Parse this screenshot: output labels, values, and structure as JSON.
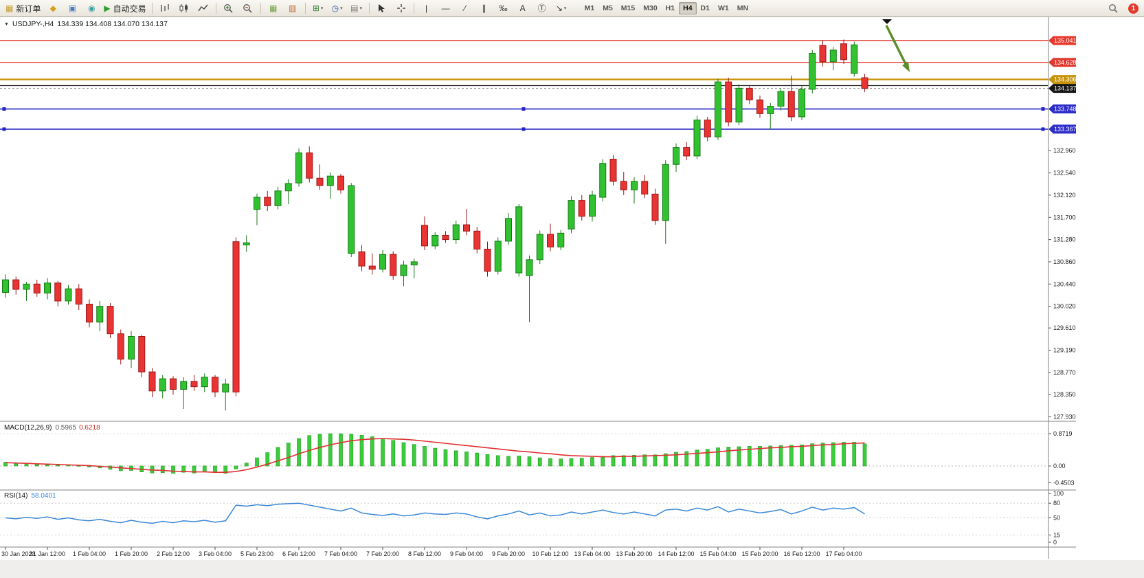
{
  "toolbar": {
    "notification_count": "1",
    "tools": [
      {
        "type": "button",
        "name": "new-order-button",
        "glyph": "▦",
        "color": "#c59b2d",
        "label": "新订单"
      },
      {
        "type": "button",
        "name": "profiles-icon-button",
        "glyph": "◆",
        "color": "#d4a017"
      },
      {
        "type": "button",
        "name": "charts-icon-button",
        "glyph": "▣",
        "color": "#4a7dbd"
      },
      {
        "type": "button",
        "name": "globe-icon-button",
        "glyph": "◉",
        "color": "#3fa0a0"
      },
      {
        "type": "button",
        "name": "autotrading-button",
        "glyph": "▶",
        "color": "#2e9b2e",
        "label": "自动交易"
      },
      {
        "type": "divider"
      },
      {
        "type": "button",
        "name": "bar-chart-type-button",
        "svg": "bars"
      },
      {
        "type": "button",
        "name": "candlestick-type-button",
        "svg": "candles"
      },
      {
        "type": "button",
        "name": "line-chart-type-button",
        "svg": "line"
      },
      {
        "type": "divider"
      },
      {
        "type": "button",
        "name": "zoom-in-button",
        "svg": "zoomin"
      },
      {
        "type": "button",
        "name": "zoom-out-button",
        "svg": "zoomout"
      },
      {
        "type": "divider"
      },
      {
        "type": "button",
        "name": "tile-windows-button",
        "glyph": "▦",
        "color": "#6f9c3f"
      },
      {
        "type": "button",
        "name": "arrange-windows-button",
        "glyph": "▥",
        "color": "#bd6530"
      },
      {
        "type": "divider"
      },
      {
        "type": "button",
        "name": "indicators-button",
        "glyph": "⊞",
        "color": "#3a7d3a",
        "caret": true
      },
      {
        "type": "button",
        "name": "periods-button",
        "glyph": "◷",
        "color": "#2c5fb3",
        "caret": true
      },
      {
        "type": "button",
        "name": "templates-button",
        "glyph": "▤",
        "color": "#76726a",
        "caret": true
      },
      {
        "type": "divider"
      },
      {
        "type": "button",
        "name": "cursor-button",
        "svg": "cursor"
      },
      {
        "type": "button",
        "name": "crosshair-button",
        "svg": "cross"
      },
      {
        "type": "divider"
      },
      {
        "type": "button",
        "name": "vline-tool-button",
        "glyph": "|",
        "color": "#333"
      },
      {
        "type": "button",
        "name": "hline-tool-button",
        "glyph": "—",
        "color": "#333"
      },
      {
        "type": "button",
        "name": "trendline-tool-button",
        "glyph": "∕",
        "color": "#333"
      },
      {
        "type": "button",
        "name": "channel-tool-button",
        "glyph": "∥",
        "color": "#333"
      },
      {
        "type": "button",
        "name": "fibonacci-tool-button",
        "glyph": "‰",
        "color": "#333"
      },
      {
        "type": "button",
        "name": "text-tool-button",
        "glyph": "A",
        "color": "#333"
      },
      {
        "type": "button",
        "name": "label-tool-button",
        "glyph": "Ⓣ",
        "color": "#333"
      },
      {
        "type": "button",
        "name": "arrows-tool-button",
        "glyph": "↘",
        "color": "#333",
        "caret": true
      }
    ],
    "timeframes": [
      "M1",
      "M5",
      "M15",
      "M30",
      "H1",
      "H4",
      "D1",
      "W1",
      "MN"
    ],
    "active_timeframe": "H4"
  },
  "chart": {
    "collapse_icon": "▼",
    "symbol_period": "USDJPY-,H4",
    "ohlc": "134.339 134.408 134.070 134.137",
    "macd_label": "MACD(12,26,9)",
    "macd_main_value": "0.5965",
    "macd_signal_value": "0.6218",
    "rsi_label": "RSI(14)",
    "rsi_value": "58.0401"
  },
  "chart_data": {
    "type": "candlestick",
    "symbol": "USDJPY-",
    "timeframe": "H4",
    "ohlc_readout": {
      "open": 134.339,
      "high": 134.408,
      "low": 134.07,
      "close": 134.137
    },
    "price_axis_ticks": [
      "132.960",
      "132.540",
      "132.120",
      "131.700",
      "131.280",
      "130.860",
      "130.440",
      "130.020",
      "129.610",
      "129.190",
      "128.770",
      "128.350",
      "127.930"
    ],
    "hlines": [
      {
        "price": 135.041,
        "label": "135.041",
        "color": "#e23b2e",
        "width": 1.4,
        "badge": "#e8392e",
        "handles": false
      },
      {
        "price": 134.628,
        "label": "134.628",
        "color": "#e23b2e",
        "width": 1.4,
        "badge": "#e03a30",
        "handles": false
      },
      {
        "price": 134.306,
        "label": "134.306",
        "color": "#c9930a",
        "width": 2.4,
        "badge": "#c9930a",
        "handles": false
      },
      {
        "price": 134.19,
        "label": null,
        "color": "#222222",
        "width": 1.2,
        "badge": null,
        "handles": false
      },
      {
        "price": 133.748,
        "label": "133.748",
        "color": "#2424c4",
        "width": 1.6,
        "badge": "#2d2dc9",
        "handles": true
      },
      {
        "price": 133.367,
        "label": "133.367",
        "color": "#2424c4",
        "width": 1.6,
        "badge": "#2d2dc9",
        "handles": true
      }
    ],
    "current_price": {
      "value": 134.137,
      "label": "134.137",
      "badge": "#151515",
      "line_color": "#888888"
    },
    "time_labels": [
      "30 Jan 2023",
      "31 Jan 12:00",
      "1 Feb 04:00",
      "1 Feb 20:00",
      "2 Feb 12:00",
      "3 Feb 04:00",
      "5 Feb 23:00",
      "6 Feb 12:00",
      "7 Feb 04:00",
      "7 Feb 20:00",
      "8 Feb 12:00",
      "9 Feb 04:00",
      "9 Feb 20:00",
      "10 Feb 12:00",
      "13 Feb 04:00",
      "13 Feb 20:00",
      "14 Feb 12:00",
      "15 Feb 04:00",
      "15 Feb 20:00",
      "16 Feb 12:00",
      "17 Feb 04:00"
    ],
    "candles": [
      [
        130.28,
        130.62,
        130.18,
        130.52
      ],
      [
        130.52,
        130.58,
        130.24,
        130.34
      ],
      [
        130.34,
        130.48,
        130.12,
        130.44
      ],
      [
        130.44,
        130.52,
        130.2,
        130.27
      ],
      [
        130.27,
        130.55,
        130.15,
        130.46
      ],
      [
        130.46,
        130.5,
        130.02,
        130.12
      ],
      [
        130.12,
        130.42,
        130.05,
        130.35
      ],
      [
        130.35,
        130.44,
        129.95,
        130.06
      ],
      [
        130.06,
        130.15,
        129.62,
        129.72
      ],
      [
        129.72,
        130.12,
        129.55,
        130.02
      ],
      [
        130.02,
        130.08,
        129.42,
        129.5
      ],
      [
        129.5,
        129.58,
        128.92,
        129.02
      ],
      [
        129.02,
        129.55,
        128.85,
        129.45
      ],
      [
        129.45,
        129.48,
        128.68,
        128.78
      ],
      [
        128.78,
        128.85,
        128.3,
        128.42
      ],
      [
        128.42,
        128.72,
        128.28,
        128.65
      ],
      [
        128.65,
        128.7,
        128.35,
        128.45
      ],
      [
        128.45,
        128.68,
        128.08,
        128.6
      ],
      [
        128.6,
        128.72,
        128.42,
        128.5
      ],
      [
        128.5,
        128.75,
        128.4,
        128.68
      ],
      [
        128.68,
        128.72,
        128.3,
        128.4
      ],
      [
        128.4,
        128.65,
        128.05,
        128.55
      ],
      [
        131.24,
        131.32,
        128.32,
        128.4
      ],
      [
        131.18,
        131.36,
        131.05,
        131.22
      ],
      [
        131.85,
        132.15,
        131.55,
        132.08
      ],
      [
        132.08,
        132.2,
        131.82,
        131.92
      ],
      [
        131.92,
        132.28,
        131.85,
        132.2
      ],
      [
        132.2,
        132.42,
        131.95,
        132.34
      ],
      [
        132.35,
        133.0,
        132.28,
        132.92
      ],
      [
        132.92,
        133.04,
        132.36,
        132.44
      ],
      [
        132.44,
        132.7,
        132.22,
        132.3
      ],
      [
        132.3,
        132.55,
        132.05,
        132.48
      ],
      [
        132.48,
        132.52,
        132.15,
        132.22
      ],
      [
        131.02,
        132.35,
        130.95,
        132.3
      ],
      [
        131.05,
        131.18,
        130.68,
        130.78
      ],
      [
        130.78,
        131.02,
        130.62,
        130.72
      ],
      [
        130.72,
        131.08,
        130.66,
        131.0
      ],
      [
        131.0,
        131.06,
        130.52,
        130.6
      ],
      [
        130.6,
        130.88,
        130.4,
        130.8
      ],
      [
        130.8,
        130.92,
        130.55,
        130.86
      ],
      [
        131.55,
        131.72,
        131.08,
        131.16
      ],
      [
        131.16,
        131.42,
        131.1,
        131.36
      ],
      [
        131.36,
        131.44,
        131.22,
        131.28
      ],
      [
        131.28,
        131.64,
        131.2,
        131.56
      ],
      [
        131.56,
        131.86,
        131.36,
        131.44
      ],
      [
        131.44,
        131.52,
        131.02,
        131.1
      ],
      [
        131.1,
        131.24,
        130.58,
        130.68
      ],
      [
        130.68,
        131.32,
        130.62,
        131.25
      ],
      [
        131.25,
        131.78,
        131.18,
        131.68
      ],
      [
        130.65,
        131.95,
        130.58,
        131.9
      ],
      [
        130.6,
        130.98,
        129.72,
        130.9
      ],
      [
        130.9,
        131.45,
        130.82,
        131.38
      ],
      [
        131.38,
        131.58,
        131.06,
        131.14
      ],
      [
        131.14,
        131.46,
        131.08,
        131.4
      ],
      [
        131.48,
        132.1,
        131.4,
        132.02
      ],
      [
        132.02,
        132.12,
        131.64,
        131.72
      ],
      [
        131.72,
        132.2,
        131.62,
        132.12
      ],
      [
        132.08,
        132.8,
        132.0,
        132.72
      ],
      [
        132.8,
        132.88,
        132.3,
        132.38
      ],
      [
        132.38,
        132.56,
        132.12,
        132.22
      ],
      [
        132.22,
        132.46,
        131.96,
        132.38
      ],
      [
        132.38,
        132.5,
        132.06,
        132.14
      ],
      [
        132.14,
        132.24,
        131.56,
        131.64
      ],
      [
        131.64,
        132.78,
        131.2,
        132.7
      ],
      [
        132.7,
        133.1,
        132.56,
        133.02
      ],
      [
        133.02,
        133.12,
        132.78,
        132.86
      ],
      [
        132.86,
        133.62,
        132.8,
        133.54
      ],
      [
        133.54,
        133.6,
        133.14,
        133.22
      ],
      [
        133.22,
        134.32,
        133.16,
        134.26
      ],
      [
        134.26,
        134.34,
        133.42,
        133.5
      ],
      [
        133.5,
        134.22,
        133.44,
        134.14
      ],
      [
        134.14,
        134.2,
        133.84,
        133.92
      ],
      [
        133.92,
        134.0,
        133.58,
        133.66
      ],
      [
        133.66,
        133.86,
        133.36,
        133.8
      ],
      [
        133.8,
        134.14,
        133.72,
        134.08
      ],
      [
        134.08,
        134.38,
        133.52,
        133.6
      ],
      [
        133.6,
        134.18,
        133.54,
        134.12
      ],
      [
        134.12,
        134.86,
        134.04,
        134.8
      ],
      [
        134.95,
        135.05,
        134.55,
        134.64
      ],
      [
        134.64,
        134.92,
        134.48,
        134.86
      ],
      [
        134.98,
        135.06,
        134.6,
        134.68
      ],
      [
        134.42,
        135.02,
        134.36,
        134.96
      ],
      [
        134.339,
        134.408,
        134.07,
        134.137
      ]
    ],
    "macd": {
      "hist": [
        0.1,
        0.08,
        0.06,
        0.05,
        0.03,
        0.02,
        0.03,
        0.01,
        -0.03,
        -0.05,
        -0.09,
        -0.13,
        -0.12,
        -0.16,
        -0.19,
        -0.18,
        -0.2,
        -0.17,
        -0.19,
        -0.16,
        -0.18,
        -0.2,
        -0.08,
        0.08,
        0.22,
        0.36,
        0.5,
        0.62,
        0.74,
        0.82,
        0.86,
        0.872,
        0.87,
        0.86,
        0.83,
        0.79,
        0.74,
        0.69,
        0.63,
        0.58,
        0.53,
        0.48,
        0.44,
        0.41,
        0.38,
        0.35,
        0.31,
        0.28,
        0.26,
        0.27,
        0.25,
        0.22,
        0.2,
        0.19,
        0.2,
        0.21,
        0.23,
        0.26,
        0.28,
        0.28,
        0.29,
        0.3,
        0.3,
        0.33,
        0.37,
        0.39,
        0.43,
        0.45,
        0.49,
        0.51,
        0.52,
        0.53,
        0.53,
        0.54,
        0.55,
        0.56,
        0.57,
        0.6,
        0.62,
        0.63,
        0.64,
        0.64,
        0.5965
      ],
      "signal": [
        0.09,
        0.08,
        0.07,
        0.06,
        0.05,
        0.04,
        0.03,
        0.02,
        0.01,
        -0.01,
        -0.03,
        -0.05,
        -0.07,
        -0.09,
        -0.11,
        -0.12,
        -0.14,
        -0.15,
        -0.16,
        -0.16,
        -0.17,
        -0.17,
        -0.15,
        -0.1,
        -0.03,
        0.05,
        0.14,
        0.23,
        0.33,
        0.42,
        0.5,
        0.57,
        0.63,
        0.68,
        0.71,
        0.73,
        0.74,
        0.73,
        0.72,
        0.7,
        0.67,
        0.64,
        0.61,
        0.58,
        0.55,
        0.52,
        0.49,
        0.46,
        0.43,
        0.4,
        0.38,
        0.35,
        0.33,
        0.3,
        0.28,
        0.27,
        0.26,
        0.25,
        0.25,
        0.26,
        0.26,
        0.27,
        0.28,
        0.29,
        0.3,
        0.32,
        0.34,
        0.36,
        0.38,
        0.41,
        0.43,
        0.45,
        0.47,
        0.49,
        0.5,
        0.52,
        0.53,
        0.55,
        0.57,
        0.58,
        0.6,
        0.61,
        0.6218
      ],
      "scale_labels": [
        "0.8719",
        "0.00",
        "-0.4503"
      ],
      "scale_values": [
        0.8719,
        0,
        -0.4503
      ]
    },
    "rsi": {
      "values": [
        50,
        48,
        51,
        49,
        52,
        47,
        50,
        46,
        44,
        47,
        43,
        40,
        45,
        41,
        39,
        43,
        40,
        44,
        42,
        45,
        41,
        44,
        76,
        74,
        77,
        75,
        78,
        79,
        80,
        76,
        72,
        68,
        64,
        70,
        60,
        57,
        55,
        58,
        54,
        56,
        60,
        58,
        57,
        60,
        58,
        52,
        48,
        54,
        58,
        64,
        56,
        60,
        54,
        56,
        62,
        58,
        62,
        66,
        61,
        58,
        62,
        58,
        54,
        66,
        68,
        64,
        70,
        66,
        73,
        62,
        68,
        64,
        60,
        63,
        67,
        58,
        64,
        72,
        66,
        70,
        68,
        71,
        58.04
      ],
      "levels": [
        "100",
        "80",
        "50",
        "15",
        "0"
      ],
      "level_values": [
        100,
        80,
        50,
        15,
        0
      ],
      "level_lines": [
        80,
        50,
        15
      ]
    },
    "colors": {
      "up": "#31c131",
      "up_border": "#157a15",
      "down": "#e93434",
      "down_border": "#9e1515",
      "macd_hist": "#3ccd3c",
      "macd_hist_border": "#23a123",
      "macd_signal": "#e03030",
      "rsi_line": "#3a87d6",
      "axis_text": "#1a1a1a",
      "separator": "#808080"
    },
    "annotations": {
      "arrow": {
        "color": "#5a8f29"
      },
      "marker_triangle": {
        "color": "#111111"
      }
    }
  }
}
